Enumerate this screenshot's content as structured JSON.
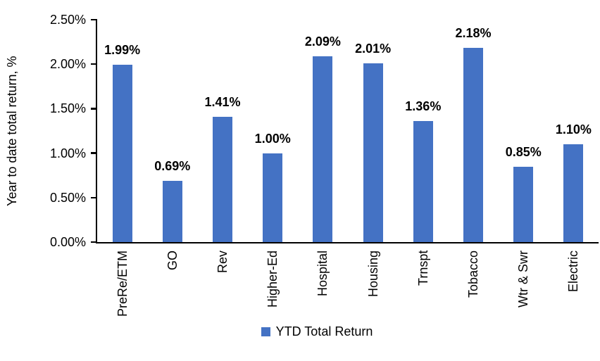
{
  "chart_data": {
    "type": "bar",
    "title": "",
    "ylabel": "Year to date total return, %",
    "xlabel": "",
    "categories": [
      "PreRe/ETM",
      "GO",
      "Rev",
      "Higher-Ed",
      "Hospital",
      "Housing",
      "Trnspt",
      "Tobacco",
      "Wtr & Swr",
      "Electric"
    ],
    "values": [
      1.99,
      0.69,
      1.41,
      1.0,
      2.09,
      2.01,
      1.36,
      2.18,
      0.85,
      1.1
    ],
    "data_labels": [
      "1.99%",
      "0.69%",
      "1.41%",
      "1.00%",
      "2.09%",
      "2.01%",
      "1.36%",
      "2.18%",
      "0.85%",
      "1.10%"
    ],
    "ylim": [
      0,
      2.5
    ],
    "y_tick_values": [
      2.5,
      2.0,
      1.5,
      1.0,
      0.5,
      0.0
    ],
    "y_tick_labels": [
      "2.50%",
      "2.00%",
      "1.50%",
      "1.00%",
      "0.50%",
      "0.00%"
    ],
    "grid": false,
    "legend": {
      "label": "YTD Total Return",
      "position": "bottom"
    },
    "colors": {
      "bar": "#4472C4",
      "axis": "#000000",
      "text": "#000000"
    }
  }
}
